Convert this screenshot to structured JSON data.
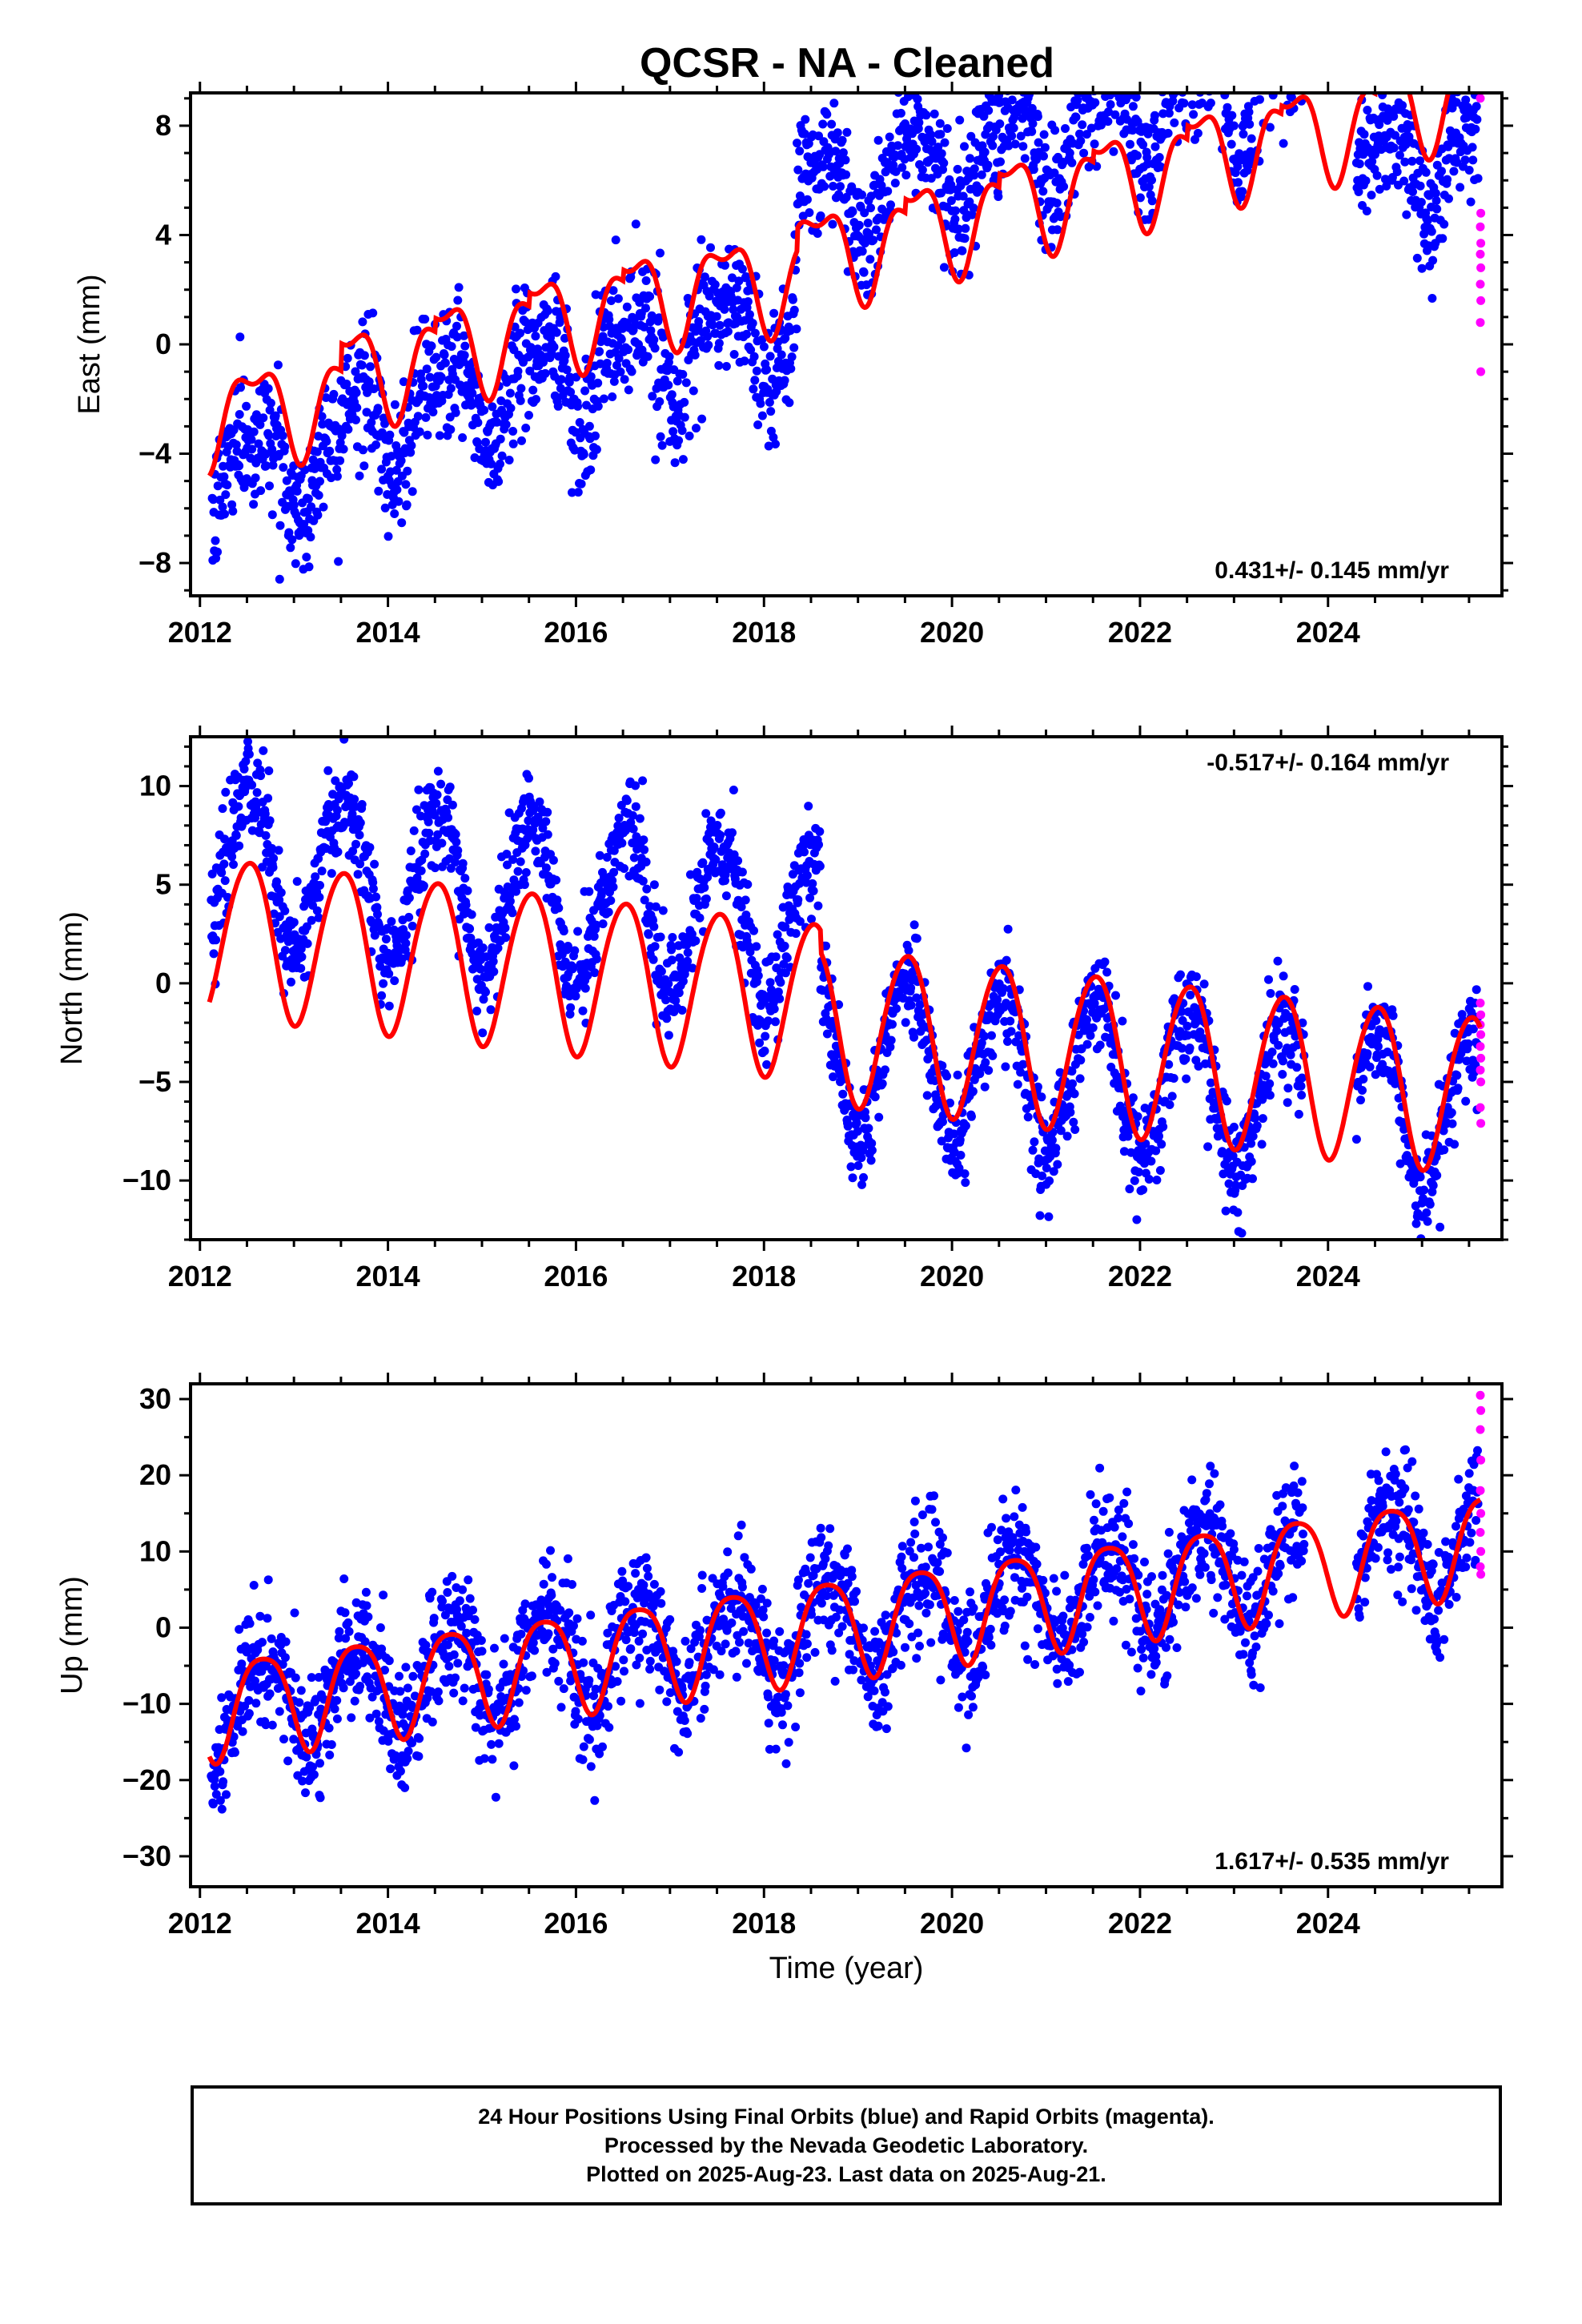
{
  "title": "QCSR  - NA - Cleaned",
  "footer": {
    "line1": "24 Hour Positions Using Final Orbits (blue) and Rapid Orbits (magenta).",
    "line2": "Processed by the Nevada Geodetic Laboratory.",
    "line3": "Plotted on 2025-Aug-23. Last data on 2025-Aug-21."
  },
  "colors": {
    "final_orbits": "#0000ff",
    "rapid_orbits": "#ff00ff",
    "model_fit": "#ff0000"
  },
  "chart_data": [
    {
      "type": "scatter",
      "name": "east",
      "ylabel": "East (mm)",
      "xlim": [
        2011.9,
        2025.85
      ],
      "ylim": [
        -9.2,
        9.2
      ],
      "yticks": [
        -8,
        -4,
        0,
        4,
        8
      ],
      "yminor": 1,
      "xticks": [
        2012,
        2014,
        2016,
        2018,
        2020,
        2022,
        2024
      ],
      "rate_label": "0.431+/- 0.145 mm/yr",
      "rate_position": "bottom-right",
      "data_start": 2012.12,
      "data_end": 2025.6,
      "gaps": [
        [
          2023.75,
          2024.3
        ]
      ],
      "scatter_sd": 1.2,
      "model": {
        "segments": [
          {
            "from": 2012.1,
            "to": 2013.5,
            "offset": -2.6
          },
          {
            "from": 2013.5,
            "to": 2014.5,
            "offset": -1.6
          },
          {
            "from": 2014.5,
            "to": 2015.5,
            "offset": -1.1
          },
          {
            "from": 2015.5,
            "to": 2016.5,
            "offset": -0.6
          },
          {
            "from": 2016.5,
            "to": 2017.5,
            "offset": -0.2
          },
          {
            "from": 2017.5,
            "to": 2018.35,
            "offset": -0.2
          },
          {
            "from": 2018.35,
            "to": 2019.5,
            "offset": 0.6
          },
          {
            "from": 2019.5,
            "to": 2020.5,
            "offset": 1.1
          },
          {
            "from": 2020.5,
            "to": 2021.5,
            "offset": 1.6
          },
          {
            "from": 2021.5,
            "to": 2022.5,
            "offset": 2.0
          },
          {
            "from": 2022.5,
            "to": 2023.5,
            "offset": 2.5
          },
          {
            "from": 2023.5,
            "to": 2024.5,
            "offset": 2.8
          },
          {
            "from": 2024.5,
            "to": 2025.62,
            "offset": 3.4
          }
        ],
        "rate": 0.431,
        "a1": 1.6,
        "p1": 0.58,
        "a2": 0.7,
        "p2": 0.2
      },
      "data_pieces": [
        {
          "from": 2012.1,
          "to": 2018.35,
          "shift": -2.0
        },
        {
          "from": 2018.35,
          "to": 2023.75,
          "shift": 2.2
        },
        {
          "from": 2024.3,
          "to": 2025.62,
          "shift": -2.2
        }
      ],
      "rapid": [
        9.0,
        4.8,
        4.3,
        3.7,
        3.3,
        2.8,
        2.2,
        1.6,
        0.8,
        -1.0
      ]
    },
    {
      "type": "scatter",
      "name": "north",
      "ylabel": "North (mm)",
      "xlim": [
        2011.9,
        2025.85
      ],
      "ylim": [
        -13.0,
        12.5
      ],
      "yticks": [
        -10,
        -5,
        0,
        5,
        10
      ],
      "yminor": 1,
      "xticks": [
        2012,
        2014,
        2016,
        2018,
        2020,
        2022,
        2024
      ],
      "rate_label": "-0.517+/- 0.164 mm/yr",
      "rate_position": "top-right",
      "data_start": 2012.12,
      "data_end": 2025.6,
      "gaps": [
        [
          2023.75,
          2024.3
        ]
      ],
      "scatter_sd": 1.3,
      "model": {
        "segments": [
          {
            "from": 2012.1,
            "to": 2018.6,
            "offset": 2.6
          },
          {
            "from": 2018.6,
            "to": 2025.62,
            "offset": 1.5
          }
        ],
        "rate": -0.517,
        "a1": 4.0,
        "p1": 0.52,
        "a2": 0.3,
        "p2": 0.1
      },
      "data_pieces": [
        {
          "from": 2012.1,
          "to": 2018.6,
          "shift": 3.6
        },
        {
          "from": 2018.6,
          "to": 2025.62,
          "shift": -1.3
        }
      ],
      "rapid": [
        -1.0,
        -1.6,
        -2.1,
        -2.6,
        -3.2,
        -3.8,
        -4.4,
        -5.0,
        -6.3,
        -7.1
      ]
    },
    {
      "type": "scatter",
      "name": "up",
      "ylabel": "Up (mm)",
      "xlabel": "Time (year)",
      "xlim": [
        2011.9,
        2025.85
      ],
      "ylim": [
        -34,
        32
      ],
      "yticks": [
        -30,
        -20,
        -10,
        0,
        10,
        20,
        30
      ],
      "yminor": 5,
      "xticks": [
        2012,
        2014,
        2016,
        2018,
        2020,
        2022,
        2024
      ],
      "rate_label": "1.617+/- 0.535 mm/yr",
      "rate_position": "bottom-right",
      "data_start": 2012.12,
      "data_end": 2025.6,
      "gaps": [
        [
          2023.75,
          2024.3
        ]
      ],
      "scatter_sd": 4.0,
      "model": {
        "segments": [
          {
            "from": 2012.1,
            "to": 2025.62,
            "offset": -10.5
          }
        ],
        "rate": 1.617,
        "a1": 6.5,
        "p1": 0.67,
        "a2": 1.2,
        "p2": 0.3
      },
      "data_pieces": [
        {
          "from": 2012.1,
          "to": 2025.62,
          "shift": 0.0
        }
      ],
      "rapid": [
        30.5,
        28.5,
        26.0,
        22.0,
        18.0,
        15.0,
        12.5,
        10.0,
        8.0,
        7.0
      ]
    }
  ]
}
